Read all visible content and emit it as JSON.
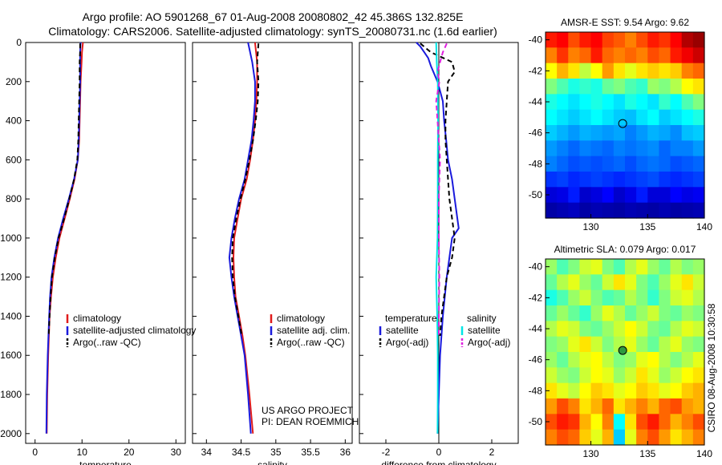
{
  "header": {
    "line1": "Argo profile: AO 5901268_67 01-Aug-2008 20080802_42 45.386S 132.825E",
    "line2": "Climatology: CARS2006. Satellite-adjusted climatology: synTS_20080731.nc (1.6d earlier)"
  },
  "colors": {
    "climatology": "#e01b1b",
    "satellite": "#1a1adc",
    "argo": "#000000",
    "satellite_sal": "#00e5e5",
    "argo_sal": "#e020e0"
  },
  "sidebar_stamp": "CSIRO 08-Aug-2008 10:30:58",
  "project_note": {
    "line1": "US ARGO PROJECT",
    "line2": "PI: DEAN ROEMMICH"
  },
  "chart_data": [
    {
      "id": "temperature",
      "type": "line",
      "xlabel": "temperature",
      "xlim": [
        -2,
        32
      ],
      "xticks": [
        0,
        10,
        20,
        30
      ],
      "ylim": [
        0,
        2050
      ],
      "yticks": [
        0,
        200,
        400,
        600,
        800,
        1000,
        1200,
        1400,
        1600,
        1800,
        2000
      ],
      "y_reversed": true,
      "legend": [
        "climatology",
        "satellite-adjusted climatology",
        "Argo(..raw -QC)"
      ],
      "series": [
        {
          "name": "climatology",
          "color": "#e01b1b",
          "dash": "",
          "depth": [
            0,
            50,
            100,
            200,
            300,
            400,
            500,
            600,
            700,
            800,
            900,
            1000,
            1100,
            1200,
            1300,
            1400,
            1600,
            1800,
            2000
          ],
          "values": [
            10.2,
            10.0,
            9.9,
            9.7,
            9.6,
            9.5,
            9.4,
            9.1,
            8.4,
            7.4,
            6.3,
            5.2,
            4.4,
            3.8,
            3.4,
            3.1,
            2.8,
            2.6,
            2.5
          ]
        },
        {
          "name": "satellite-adjusted climatology",
          "color": "#1a1adc",
          "dash": "",
          "depth": [
            0,
            50,
            100,
            200,
            300,
            400,
            500,
            600,
            700,
            800,
            900,
            1000,
            1100,
            1200,
            1300,
            1400,
            1600,
            1800,
            2000
          ],
          "values": [
            9.7,
            9.6,
            9.6,
            9.6,
            9.5,
            9.4,
            9.3,
            9.1,
            8.3,
            7.2,
            6.0,
            4.9,
            4.1,
            3.5,
            3.2,
            3.0,
            2.7,
            2.5,
            2.4
          ]
        },
        {
          "name": "Argo(..raw -QC)",
          "color": "#000000",
          "dash": "6,4",
          "depth": [
            5,
            50,
            100,
            200,
            300,
            400,
            500,
            600,
            700,
            800,
            900,
            1000,
            1100,
            1200,
            1300,
            1400,
            1500
          ],
          "values": [
            9.6,
            9.6,
            9.5,
            9.5,
            9.4,
            9.3,
            9.2,
            9.0,
            8.3,
            7.3,
            6.2,
            5.0,
            4.2,
            3.6,
            3.3,
            3.1,
            2.9
          ]
        }
      ]
    },
    {
      "id": "salinity",
      "type": "line",
      "xlabel": "salinity",
      "xlim": [
        33.8,
        36.1
      ],
      "xticks": [
        34,
        34.5,
        35,
        35.5,
        36
      ],
      "ylim": [
        0,
        2050
      ],
      "y_reversed": true,
      "legend": [
        "climatology",
        "satellite adj. clim.",
        "Argo(..raw -QC)"
      ],
      "series": [
        {
          "name": "climatology",
          "color": "#e01b1b",
          "dash": "",
          "depth": [
            0,
            100,
            200,
            300,
            400,
            500,
            600,
            700,
            800,
            900,
            1000,
            1100,
            1200,
            1300,
            1400,
            1500,
            1600,
            1800,
            2000
          ],
          "values": [
            34.7,
            34.73,
            34.73,
            34.72,
            34.7,
            34.67,
            34.63,
            34.58,
            34.5,
            34.45,
            34.4,
            34.39,
            34.4,
            34.42,
            34.47,
            34.52,
            34.56,
            34.62,
            34.67
          ]
        },
        {
          "name": "satellite adj. clim.",
          "color": "#1a1adc",
          "dash": "",
          "depth": [
            0,
            100,
            200,
            300,
            400,
            500,
            600,
            700,
            800,
            900,
            1000,
            1100,
            1200,
            1300,
            1400,
            1500,
            1600,
            1800,
            2000
          ],
          "values": [
            34.6,
            34.66,
            34.7,
            34.7,
            34.68,
            34.65,
            34.6,
            34.55,
            34.47,
            34.41,
            34.36,
            34.33,
            34.36,
            34.4,
            34.45,
            34.5,
            34.55,
            34.6,
            34.64
          ]
        },
        {
          "name": "Argo(..raw -QC)",
          "color": "#000000",
          "dash": "6,4",
          "depth": [
            5,
            100,
            200,
            300,
            400,
            500,
            600,
            700,
            800,
            900,
            1000,
            1100,
            1200,
            1300,
            1400,
            1500
          ],
          "values": [
            34.75,
            34.73,
            34.75,
            34.74,
            34.71,
            34.67,
            34.62,
            34.56,
            34.49,
            34.43,
            34.38,
            34.37,
            34.38,
            34.41,
            34.46,
            34.51
          ]
        }
      ]
    },
    {
      "id": "difference",
      "type": "line",
      "xlabel": "difference from climatology",
      "xlim": [
        -3,
        3
      ],
      "xticks": [
        -2,
        0,
        2
      ],
      "ylim": [
        0,
        2050
      ],
      "y_reversed": true,
      "legend_left": {
        "title": "temperature",
        "items": [
          "satellite",
          "Argo(-adj)"
        ]
      },
      "legend_right": {
        "title": "salinity",
        "items": [
          "satellite",
          "Argo(-adj)"
        ]
      },
      "series": [
        {
          "name": "temperature satellite",
          "color": "#1a1adc",
          "dash": "",
          "depth": [
            0,
            20,
            50,
            80,
            120,
            200,
            300,
            400,
            500,
            600,
            700,
            800,
            900,
            950,
            1000,
            1100,
            1200,
            1400,
            1600,
            1800,
            2000
          ],
          "values": [
            -0.85,
            -0.7,
            -0.55,
            -0.4,
            -0.3,
            -0.05,
            0.15,
            0.2,
            0.28,
            0.35,
            0.5,
            0.6,
            0.7,
            0.75,
            0.5,
            0.4,
            0.3,
            0.15,
            0.05,
            0.0,
            -0.05
          ]
        },
        {
          "name": "temperature Argo(-adj)",
          "color": "#000000",
          "dash": "6,4",
          "depth": [
            5,
            50,
            100,
            150,
            200,
            300,
            400,
            500,
            600,
            700,
            800,
            900,
            1000,
            1100,
            1200,
            1400,
            1500
          ],
          "values": [
            -0.7,
            -0.3,
            0.5,
            0.6,
            0.35,
            0.3,
            0.25,
            0.25,
            0.3,
            0.35,
            0.4,
            0.5,
            0.6,
            0.5,
            0.3,
            0.1,
            0.05
          ]
        },
        {
          "name": "salinity satellite",
          "color": "#00e5e5",
          "dash": "",
          "depth": [
            0,
            100,
            200,
            400,
            600,
            800,
            1000,
            1200,
            1400,
            1600,
            1800,
            2000
          ],
          "values": [
            -0.1,
            -0.08,
            -0.04,
            -0.03,
            -0.04,
            -0.04,
            -0.05,
            -0.1,
            -0.06,
            -0.04,
            -0.04,
            -0.05
          ]
        },
        {
          "name": "salinity Argo(-adj)",
          "color": "#e020e0",
          "dash": "6,4",
          "depth": [
            5,
            50,
            100,
            150,
            200,
            300,
            400,
            500,
            600,
            700,
            800,
            1000,
            1200,
            1400,
            1500
          ],
          "values": [
            0.3,
            0.15,
            0.05,
            -0.05,
            0.02,
            -0.1,
            -0.05,
            0.0,
            0.05,
            0.02,
            0.0,
            0.0,
            0.02,
            0.0,
            0.0
          ]
        }
      ]
    },
    {
      "id": "amsr_sst_map",
      "type": "heatmap",
      "title": "AMSR-E SST: 9.54 Argo: 9.62",
      "xlim": [
        126,
        140
      ],
      "xticks": [
        130,
        135,
        140
      ],
      "ylim": [
        -51.5,
        -39.5
      ],
      "yticks": [
        -40,
        -42,
        -44,
        -46,
        -48,
        -50
      ],
      "marker": {
        "lon": 132.8,
        "lat": -45.4,
        "filled": false
      },
      "grid": [
        [
          0.78,
          0.8,
          0.74,
          0.78,
          0.8,
          0.75,
          0.73,
          0.7,
          0.74,
          0.78,
          0.76,
          0.8,
          0.92,
          0.96
        ],
        [
          0.7,
          0.76,
          0.7,
          0.72,
          0.78,
          0.72,
          0.7,
          0.72,
          0.7,
          0.74,
          0.72,
          0.78,
          0.82,
          0.88
        ],
        [
          0.6,
          0.66,
          0.62,
          0.55,
          0.6,
          0.68,
          0.62,
          0.58,
          0.62,
          0.64,
          0.62,
          0.64,
          0.7,
          0.72
        ],
        [
          0.5,
          0.46,
          0.42,
          0.44,
          0.42,
          0.48,
          0.5,
          0.46,
          0.44,
          0.52,
          0.5,
          0.54,
          0.6,
          0.62
        ],
        [
          0.42,
          0.4,
          0.38,
          0.4,
          0.42,
          0.4,
          0.38,
          0.42,
          0.4,
          0.38,
          0.44,
          0.4,
          0.46,
          0.5
        ],
        [
          0.4,
          0.38,
          0.36,
          0.38,
          0.4,
          0.38,
          0.36,
          0.35,
          0.38,
          0.4,
          0.36,
          0.38,
          0.4,
          0.42
        ],
        [
          0.36,
          0.34,
          0.32,
          0.34,
          0.33,
          0.32,
          0.33,
          0.3,
          0.32,
          0.34,
          0.33,
          0.31,
          0.35,
          0.36
        ],
        [
          0.32,
          0.3,
          0.28,
          0.3,
          0.29,
          0.28,
          0.3,
          0.29,
          0.3,
          0.31,
          0.28,
          0.3,
          0.3,
          0.32
        ],
        [
          0.3,
          0.28,
          0.26,
          0.27,
          0.26,
          0.27,
          0.28,
          0.26,
          0.28,
          0.29,
          0.28,
          0.26,
          0.27,
          0.28
        ],
        [
          0.24,
          0.25,
          0.23,
          0.24,
          0.25,
          0.24,
          0.23,
          0.24,
          0.25,
          0.26,
          0.24,
          0.23,
          0.24,
          0.25
        ],
        [
          0.14,
          0.16,
          0.22,
          0.12,
          0.15,
          0.2,
          0.12,
          0.16,
          0.22,
          0.14,
          0.14,
          0.2,
          0.16,
          0.18
        ],
        [
          0.06,
          0.08,
          0.1,
          0.06,
          0.08,
          0.07,
          0.06,
          0.08,
          0.07,
          0.06,
          0.08,
          0.06,
          0.07,
          0.08
        ]
      ]
    },
    {
      "id": "altimetric_sla_map",
      "type": "heatmap",
      "title": "Altimetric SLA: 0.079 Argo: 0.017",
      "xlim": [
        126,
        140
      ],
      "xticks": [
        130,
        135,
        140
      ],
      "ylim": [
        -51.5,
        -39.5
      ],
      "yticks": [
        -40,
        -42,
        -44,
        -46,
        -48,
        -50
      ],
      "marker": {
        "lon": 132.8,
        "lat": -45.4,
        "filled": true
      },
      "grid": [
        [
          0.52,
          0.46,
          0.5,
          0.56,
          0.58,
          0.5,
          0.46,
          0.54,
          0.58,
          0.52,
          0.48,
          0.54,
          0.5,
          0.52
        ],
        [
          0.48,
          0.54,
          0.58,
          0.52,
          0.48,
          0.56,
          0.62,
          0.58,
          0.5,
          0.46,
          0.52,
          0.58,
          0.62,
          0.56
        ],
        [
          0.42,
          0.46,
          0.52,
          0.56,
          0.5,
          0.46,
          0.48,
          0.54,
          0.5,
          0.44,
          0.5,
          0.56,
          0.58,
          0.54
        ],
        [
          0.48,
          0.52,
          0.48,
          0.44,
          0.52,
          0.58,
          0.54,
          0.48,
          0.52,
          0.56,
          0.5,
          0.48,
          0.52,
          0.5
        ],
        [
          0.54,
          0.58,
          0.56,
          0.5,
          0.48,
          0.52,
          0.56,
          0.6,
          0.56,
          0.5,
          0.48,
          0.54,
          0.58,
          0.56
        ],
        [
          0.5,
          0.52,
          0.58,
          0.62,
          0.56,
          0.5,
          0.54,
          0.58,
          0.52,
          0.48,
          0.54,
          0.58,
          0.52,
          0.5
        ],
        [
          0.52,
          0.48,
          0.54,
          0.58,
          0.6,
          0.55,
          0.5,
          0.52,
          0.58,
          0.6,
          0.54,
          0.5,
          0.54,
          0.58
        ],
        [
          0.56,
          0.52,
          0.5,
          0.56,
          0.6,
          0.58,
          0.52,
          0.56,
          0.62,
          0.58,
          0.52,
          0.56,
          0.6,
          0.62
        ],
        [
          0.62,
          0.58,
          0.55,
          0.6,
          0.64,
          0.62,
          0.58,
          0.6,
          0.64,
          0.62,
          0.58,
          0.6,
          0.64,
          0.66
        ],
        [
          0.68,
          0.74,
          0.7,
          0.62,
          0.66,
          0.72,
          0.62,
          0.66,
          0.7,
          0.66,
          0.72,
          0.74,
          0.68,
          0.66
        ],
        [
          0.74,
          0.78,
          0.76,
          0.66,
          0.6,
          0.7,
          0.4,
          0.62,
          0.74,
          0.78,
          0.72,
          0.66,
          0.7,
          0.74
        ],
        [
          0.7,
          0.74,
          0.72,
          0.64,
          0.58,
          0.66,
          0.36,
          0.58,
          0.7,
          0.74,
          0.68,
          0.62,
          0.66,
          0.7
        ]
      ]
    }
  ]
}
